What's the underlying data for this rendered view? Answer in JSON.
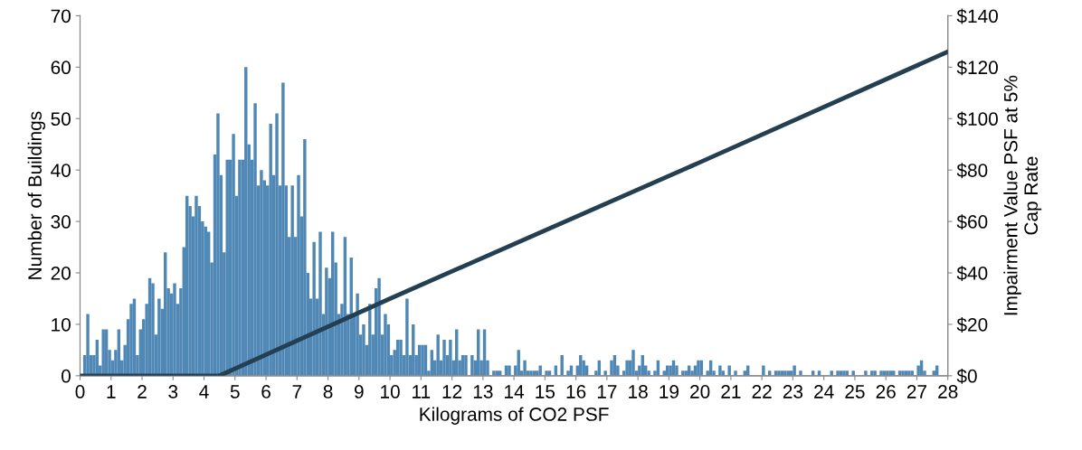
{
  "chart_data": {
    "type": "histogram",
    "xlabel": "Kilograms of CO2 PSF",
    "ylabel": "Number of Buildings",
    "y2label": "Impairment Value PSF at 5%\nCap Rate",
    "bins": [
      0,
      0.1,
      0.2,
      0.3,
      0.4,
      0.5,
      0.6,
      0.7,
      0.8,
      0.9,
      1,
      1.1,
      1.2,
      1.3,
      1.4,
      1.5,
      1.6,
      1.7,
      1.8,
      1.9,
      2,
      2.1,
      2.2,
      2.3,
      2.4,
      2.5,
      2.6,
      2.7,
      2.8,
      2.9,
      3,
      3.1,
      3.2,
      3.3,
      3.4,
      3.5,
      3.6,
      3.7,
      3.8,
      3.9,
      4,
      4.1,
      4.2,
      4.3,
      4.4,
      4.5,
      4.6,
      4.7,
      4.8,
      4.9,
      5,
      5.1,
      5.2,
      5.3,
      5.4,
      5.5,
      5.6,
      5.7,
      5.8,
      5.9,
      6,
      6.1,
      6.2,
      6.3,
      6.4,
      6.5,
      6.6,
      6.7,
      6.8,
      6.9,
      7,
      7.1,
      7.2,
      7.3,
      7.4,
      7.5,
      7.6,
      7.7,
      7.8,
      7.9,
      8,
      8.1,
      8.2,
      8.3,
      8.4,
      8.5,
      8.6,
      8.7,
      8.8,
      8.9,
      9,
      9.1,
      9.2,
      9.3,
      9.4,
      9.5,
      9.6,
      9.7,
      9.8,
      9.9,
      10,
      10.1,
      10.2,
      10.3,
      10.4,
      10.5,
      10.6,
      10.7,
      10.8,
      10.9,
      11,
      11.1,
      11.2,
      11.3,
      11.4,
      11.5,
      11.6,
      11.7,
      11.8,
      11.9,
      12,
      12.1,
      12.2,
      12.3,
      12.4,
      12.5,
      12.6,
      12.7,
      12.8,
      12.9,
      13,
      13.1,
      13.2,
      13.3,
      13.4,
      13.5,
      13.6,
      13.7,
      13.8,
      13.9,
      14,
      14.1,
      14.2,
      14.3,
      14.4,
      14.5,
      14.6,
      14.7,
      14.8,
      14.9,
      15,
      15.1,
      15.2,
      15.3,
      15.4,
      15.5,
      15.6,
      15.7,
      15.8,
      15.9,
      16,
      16.1,
      16.2,
      16.3,
      16.4,
      16.5,
      16.6,
      16.7,
      16.8,
      16.9,
      17,
      17.1,
      17.2,
      17.3,
      17.4,
      17.5,
      17.6,
      17.7,
      17.8,
      17.9,
      18,
      18.1,
      18.2,
      18.3,
      18.4,
      18.5,
      18.6,
      18.7,
      18.8,
      18.9,
      19,
      19.1,
      19.2,
      19.3,
      19.4,
      19.5,
      19.6,
      19.7,
      19.8,
      19.9,
      20,
      20.1,
      20.2,
      20.3,
      20.4,
      20.5,
      20.6,
      20.7,
      20.8,
      20.9,
      21,
      21.1,
      21.2,
      21.3,
      21.4,
      21.5,
      21.6,
      21.7,
      21.8,
      21.9,
      22,
      22.1,
      22.2,
      22.3,
      22.4,
      22.5,
      22.6,
      22.7,
      22.8,
      22.9,
      23,
      23.1,
      23.2,
      23.3,
      23.4,
      23.5,
      23.6,
      23.7,
      23.8,
      23.9,
      24,
      24.1,
      24.2,
      24.3,
      24.4,
      24.5,
      24.6,
      24.7,
      24.8,
      24.9,
      25,
      25.1,
      25.2,
      25.3,
      25.4,
      25.5,
      25.6,
      25.7,
      25.8,
      25.9,
      26,
      26.1,
      26.2,
      26.3,
      26.4,
      26.5,
      26.6,
      26.7,
      26.8,
      26.9,
      27,
      27.1,
      27.2,
      27.3,
      27.4,
      27.5,
      27.6,
      27.7,
      27.8,
      27.9,
      28
    ],
    "series": [
      {
        "color": "#4f87b5",
        "values": [
          0,
          4,
          12,
          4,
          4,
          7,
          2,
          9,
          9,
          5,
          3,
          5,
          9,
          3,
          6,
          11,
          14,
          15,
          4,
          9,
          11,
          14,
          19,
          18,
          8,
          15,
          13,
          24,
          17,
          16,
          18,
          14,
          17,
          25,
          35,
          33,
          31,
          35,
          33,
          30,
          29,
          28,
          22,
          43,
          51,
          39,
          24,
          42,
          42,
          47,
          35,
          42,
          42,
          60,
          45,
          42,
          53,
          37,
          40,
          38,
          37,
          49,
          39,
          51,
          37,
          57,
          37,
          27,
          37,
          27,
          39,
          31,
          46,
          20,
          15,
          26,
          15,
          28,
          12,
          21,
          19,
          28,
          22,
          12,
          14,
          27,
          12,
          23,
          12,
          16,
          8,
          10,
          6,
          14,
          8,
          17,
          19,
          8,
          12,
          10,
          4,
          5,
          7,
          7,
          4,
          15,
          4,
          10,
          4,
          6,
          6,
          6,
          1,
          5,
          3,
          8,
          3,
          7,
          4,
          7,
          3,
          9,
          3,
          4,
          4,
          0,
          4,
          3,
          9,
          3,
          9,
          3,
          0,
          1,
          1,
          1,
          0,
          2,
          2,
          0,
          2,
          5,
          1,
          3,
          1,
          1,
          1,
          1,
          2,
          0,
          1,
          1,
          0,
          2,
          0,
          4,
          0,
          1,
          2,
          0,
          2,
          4,
          3,
          2,
          0,
          0,
          1,
          3,
          0,
          1,
          0,
          3,
          4,
          2,
          0,
          1,
          3,
          3,
          5,
          1,
          2,
          4,
          2,
          1,
          0,
          1,
          3,
          0,
          1,
          2,
          2,
          3,
          2,
          0,
          1,
          1,
          2,
          1,
          2,
          3,
          3,
          0,
          1,
          3,
          1,
          0,
          2,
          1,
          0,
          2,
          0,
          1,
          0,
          0,
          1,
          2,
          0,
          0,
          0,
          0,
          2,
          0,
          1,
          0,
          1,
          1,
          1,
          1,
          1,
          1,
          2,
          0,
          1,
          0,
          0,
          0,
          1,
          0,
          1,
          0,
          0,
          0,
          1,
          0,
          1,
          1,
          1,
          1,
          0,
          1,
          0,
          0,
          0,
          1,
          0,
          1,
          1,
          0,
          1,
          1,
          1,
          1,
          1,
          0,
          1,
          1,
          1,
          1,
          1,
          0,
          2,
          3,
          1,
          0,
          0,
          1,
          2,
          0,
          0,
          0
        ]
      },
      {
        "type": "line",
        "axis": "y2",
        "color": "#253f52",
        "x": [
          0,
          4.5,
          10,
          20,
          28
        ],
        "values": [
          0,
          0,
          30,
          83,
          126
        ]
      }
    ],
    "xlim": [
      0,
      28
    ],
    "xticks": [
      0,
      1,
      2,
      3,
      4,
      5,
      6,
      7,
      8,
      9,
      10,
      11,
      12,
      13,
      14,
      15,
      16,
      17,
      18,
      19,
      20,
      21,
      22,
      23,
      24,
      25,
      26,
      27,
      28
    ],
    "ylim": [
      0,
      70
    ],
    "yticks": [
      0,
      10,
      20,
      30,
      40,
      50,
      60,
      70
    ],
    "y2lim": [
      0,
      140
    ],
    "y2ticks": [
      {
        "value": 0,
        "label": "$0"
      },
      {
        "value": 20,
        "label": "$20"
      },
      {
        "value": 40,
        "label": "$40"
      },
      {
        "value": 60,
        "label": "$60"
      },
      {
        "value": 80,
        "label": "$80"
      },
      {
        "value": 100,
        "label": "$100"
      },
      {
        "value": 120,
        "label": "$120"
      },
      {
        "value": 140,
        "label": "$140"
      }
    ],
    "grid": false,
    "legend": false
  }
}
